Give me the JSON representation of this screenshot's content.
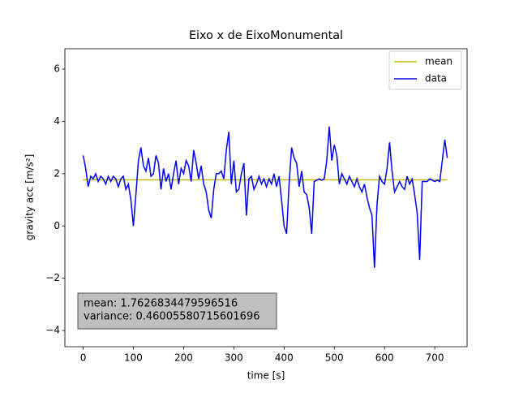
{
  "chart_data": {
    "type": "line",
    "title": "Eixo x de EixoMonumental",
    "x_label": "time [s]",
    "y_label": "gravity acc [m/s²]",
    "xlim": [
      -36.4,
      764.4
    ],
    "ylim": [
      -4.62,
      6.78
    ],
    "xticks": [
      0,
      100,
      200,
      300,
      400,
      500,
      600,
      700
    ],
    "yticks": [
      {
        "value": -4,
        "label": "−4"
      },
      {
        "value": -2,
        "label": "−2"
      },
      0,
      2,
      4,
      6
    ],
    "legend": "upper right",
    "annotation": [
      "mean: 1.7626834479596516",
      "variance: 0.46005580715601696"
    ],
    "series": [
      {
        "name": "mean",
        "color": "#bfbf00",
        "x": [
          0,
          725
        ],
        "values": [
          1.7626834479596516,
          1.7626834479596516
        ]
      },
      {
        "name": "data",
        "color": "#0000ff",
        "x": [
          0,
          5,
          10,
          15,
          20,
          25,
          30,
          35,
          40,
          45,
          50,
          55,
          60,
          65,
          70,
          75,
          80,
          85,
          90,
          95,
          100,
          105,
          110,
          115,
          120,
          125,
          130,
          135,
          140,
          145,
          150,
          155,
          160,
          165,
          170,
          175,
          180,
          185,
          190,
          195,
          200,
          205,
          210,
          215,
          220,
          225,
          230,
          235,
          240,
          245,
          250,
          255,
          260,
          265,
          270,
          275,
          280,
          285,
          290,
          295,
          300,
          305,
          310,
          315,
          320,
          325,
          330,
          335,
          340,
          345,
          350,
          355,
          360,
          365,
          370,
          375,
          380,
          385,
          390,
          395,
          400,
          405,
          410,
          415,
          420,
          425,
          430,
          435,
          440,
          445,
          450,
          455,
          460,
          465,
          470,
          475,
          480,
          485,
          490,
          495,
          500,
          505,
          510,
          515,
          520,
          525,
          530,
          535,
          540,
          545,
          550,
          555,
          560,
          565,
          570,
          575,
          580,
          585,
          590,
          595,
          600,
          605,
          610,
          615,
          620,
          625,
          630,
          635,
          640,
          645,
          650,
          655,
          660,
          665,
          670,
          675,
          680,
          685,
          690,
          695,
          700,
          705,
          710,
          715,
          720,
          725
        ],
        "values": [
          2.7,
          2.2,
          1.5,
          1.9,
          1.8,
          2.0,
          1.7,
          1.9,
          1.8,
          1.6,
          1.9,
          1.7,
          1.9,
          1.8,
          1.5,
          1.8,
          1.9,
          1.4,
          1.6,
          1.0,
          0.0,
          1.2,
          2.5,
          3.0,
          2.3,
          2.1,
          2.6,
          1.9,
          2.0,
          2.7,
          2.4,
          1.4,
          2.2,
          1.7,
          2.0,
          1.4,
          2.0,
          2.5,
          1.6,
          2.2,
          2.0,
          2.5,
          2.3,
          1.7,
          2.9,
          2.4,
          1.8,
          2.3,
          1.6,
          1.3,
          0.6,
          0.3,
          1.4,
          2.0,
          2.0,
          2.1,
          1.8,
          2.9,
          3.6,
          1.6,
          2.5,
          1.3,
          1.4,
          2.0,
          2.4,
          0.4,
          1.8,
          1.9,
          1.4,
          1.6,
          1.9,
          1.6,
          1.8,
          1.5,
          1.8,
          1.6,
          2.0,
          1.5,
          1.9,
          1.0,
          0.0,
          -0.3,
          1.6,
          3.0,
          2.6,
          2.4,
          1.5,
          2.1,
          1.3,
          1.2,
          0.7,
          -0.3,
          1.7,
          1.75,
          1.8,
          1.75,
          1.8,
          2.5,
          3.8,
          2.5,
          3.1,
          2.7,
          1.6,
          2.0,
          1.8,
          1.6,
          1.9,
          1.7,
          1.5,
          1.8,
          1.5,
          1.3,
          1.6,
          1.1,
          0.7,
          0.4,
          -1.6,
          0.8,
          1.9,
          1.7,
          1.6,
          2.2,
          3.2,
          2.1,
          1.3,
          1.5,
          1.7,
          1.5,
          1.4,
          1.9,
          1.6,
          1.8,
          1.2,
          0.5,
          -1.3,
          1.7,
          1.7,
          1.7,
          1.8,
          1.75,
          1.7,
          1.75,
          1.7,
          2.5,
          3.3,
          2.6
        ]
      }
    ]
  }
}
